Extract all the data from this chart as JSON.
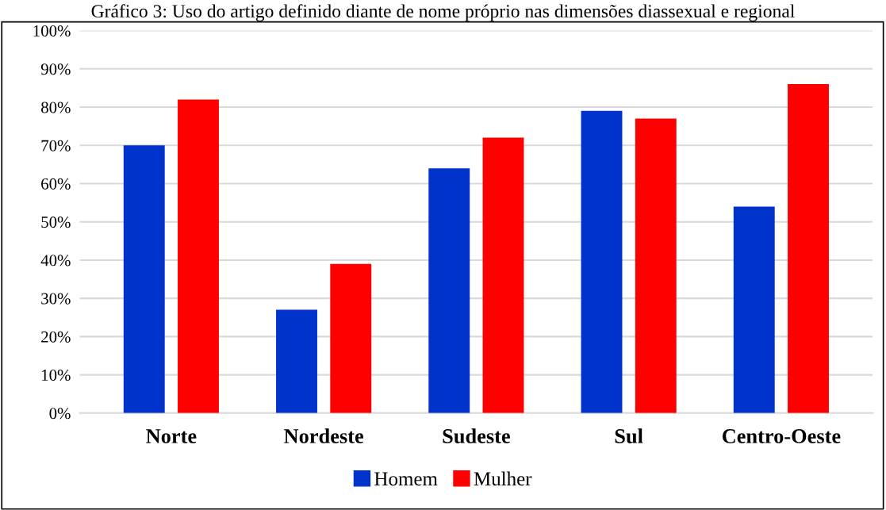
{
  "chart_data": {
    "type": "bar",
    "title": "Gráfico 3: Uso do artigo definido diante de nome próprio nas dimensões diassexual e regional",
    "categories": [
      "Norte",
      "Nordeste",
      "Sudeste",
      "Sul",
      "Centro-Oeste"
    ],
    "series": [
      {
        "name": "Homem",
        "color": "#0033cc",
        "values": [
          70,
          27,
          64,
          79,
          54
        ]
      },
      {
        "name": "Mulher",
        "color": "#ff0000",
        "values": [
          82,
          39,
          72,
          77,
          86
        ]
      }
    ],
    "ylim": [
      0,
      100
    ],
    "yticks": [
      {
        "value": 0,
        "label": "0%"
      },
      {
        "value": 10,
        "label": "10%"
      },
      {
        "value": 20,
        "label": "20%"
      },
      {
        "value": 30,
        "label": "30%"
      },
      {
        "value": 40,
        "label": "40%"
      },
      {
        "value": 50,
        "label": "50%"
      },
      {
        "value": 60,
        "label": "60%"
      },
      {
        "value": 70,
        "label": "70%"
      },
      {
        "value": 80,
        "label": "80%"
      },
      {
        "value": 90,
        "label": "90%"
      },
      {
        "value": 100,
        "label": "100%"
      }
    ],
    "grid": "y",
    "legend": "bottom"
  }
}
